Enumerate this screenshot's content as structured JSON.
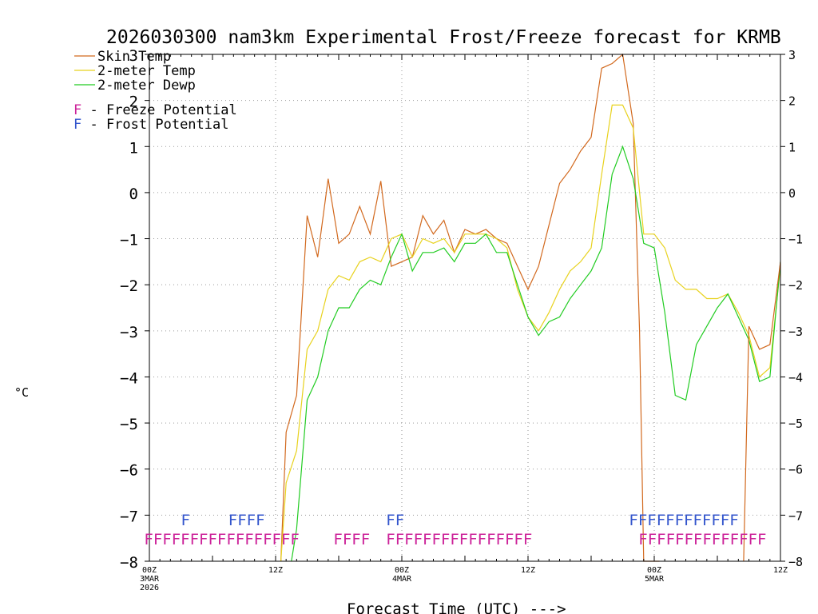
{
  "chart_data": {
    "type": "line",
    "title": "2026030300 nam3km Experimental Frost/Freeze forecast for KRMB",
    "xlabel": "Forecast Time (UTC) --->",
    "ylabel": "°C",
    "ylim": [
      -8,
      3
    ],
    "xlim": [
      0,
      60
    ],
    "yticks": [
      -8,
      -7,
      -6,
      -5,
      -4,
      -3,
      -2,
      -1,
      0,
      1,
      2,
      3
    ],
    "ytick_labels": [
      "−8",
      "−7",
      "−6",
      "−5",
      "−4",
      "−3",
      "−2",
      "−1",
      "0",
      "1",
      "2",
      "3"
    ],
    "xticks": [
      {
        "hour": 0,
        "lines": [
          "00Z",
          "3MAR",
          "2026"
        ]
      },
      {
        "hour": 12,
        "lines": [
          "12Z"
        ]
      },
      {
        "hour": 24,
        "lines": [
          "00Z",
          "4MAR"
        ]
      },
      {
        "hour": 36,
        "lines": [
          "12Z"
        ]
      },
      {
        "hour": 48,
        "lines": [
          "00Z",
          "5MAR"
        ]
      },
      {
        "hour": 60,
        "lines": [
          "12Z"
        ]
      }
    ],
    "legend_position": "top-left",
    "series": [
      {
        "name": "Skin Temp",
        "color": "#d2691e",
        "x": [
          12.5,
          13,
          14,
          15,
          16,
          17,
          18,
          19,
          20,
          21,
          22,
          23,
          24,
          25,
          26,
          27,
          28,
          29,
          30,
          31,
          32,
          33,
          34,
          35,
          36,
          37,
          38,
          39,
          40,
          41,
          42,
          43,
          44,
          45,
          46,
          46.6,
          47,
          48.5
        ],
        "values": [
          -8.0,
          -5.2,
          -4.4,
          -0.5,
          -1.4,
          0.3,
          -1.1,
          -0.9,
          -0.3,
          -0.9,
          0.25,
          -1.6,
          -1.5,
          -1.4,
          -0.5,
          -0.9,
          -0.6,
          -1.3,
          -0.8,
          -0.9,
          -0.8,
          -1.0,
          -1.1,
          -1.6,
          -2.1,
          -1.6,
          -0.7,
          0.2,
          0.5,
          0.9,
          1.2,
          2.7,
          2.8,
          3.0,
          1.5,
          -3.0,
          -8.0,
          -8.0
        ]
      },
      {
        "name": "2-meter Temp",
        "color": "#e8d21e",
        "x": [
          12.5,
          13,
          14,
          15,
          16,
          17,
          18,
          19,
          20,
          21,
          22,
          23,
          24,
          25,
          26,
          27,
          28,
          29,
          30,
          31,
          32,
          33,
          34,
          35,
          36,
          37,
          38,
          39,
          40,
          41,
          42,
          43,
          44,
          45,
          46,
          47,
          48,
          49,
          50,
          51,
          52,
          53,
          54,
          55,
          56,
          57,
          58,
          59,
          60
        ],
        "values": [
          -8.0,
          -6.3,
          -5.6,
          -3.4,
          -3.0,
          -2.1,
          -1.8,
          -1.9,
          -1.5,
          -1.4,
          -1.5,
          -1.0,
          -0.9,
          -1.4,
          -1.0,
          -1.1,
          -1.0,
          -1.3,
          -0.9,
          -0.9,
          -0.9,
          -1.0,
          -1.2,
          -2.1,
          -2.7,
          -3.0,
          -2.6,
          -2.1,
          -1.7,
          -1.5,
          -1.2,
          0.4,
          1.9,
          1.9,
          1.4,
          -0.9,
          -0.9,
          -1.2,
          -1.9,
          -2.1,
          -2.1,
          -2.3,
          -2.3,
          -2.2,
          -2.6,
          -3.1,
          -4.0,
          -3.8,
          -1.6
        ]
      },
      {
        "name": "2-meter Dewp",
        "color": "#22cc22",
        "x": [
          13.5,
          14,
          15,
          16,
          17,
          18,
          19,
          20,
          21,
          22,
          23,
          24,
          25,
          26,
          27,
          28,
          29,
          30,
          31,
          32,
          33,
          34,
          35,
          36,
          37,
          38,
          39,
          40,
          41,
          42,
          43,
          44,
          45,
          46,
          47,
          48,
          49,
          50,
          51,
          52,
          53,
          54,
          55,
          56,
          57,
          58,
          59,
          60
        ],
        "values": [
          -8.0,
          -7.3,
          -4.5,
          -4.0,
          -3.0,
          -2.5,
          -2.5,
          -2.1,
          -1.9,
          -2.0,
          -1.4,
          -0.9,
          -1.7,
          -1.3,
          -1.3,
          -1.2,
          -1.5,
          -1.1,
          -1.1,
          -0.9,
          -1.3,
          -1.3,
          -2.0,
          -2.7,
          -3.1,
          -2.8,
          -2.7,
          -2.3,
          -2.0,
          -1.7,
          -1.2,
          0.4,
          1.0,
          0.3,
          -1.1,
          -1.2,
          -2.6,
          -4.4,
          -4.5,
          -3.3,
          -2.9,
          -2.5,
          -2.2,
          -2.7,
          -3.2,
          -4.1,
          -4.0,
          -1.5
        ]
      },
      {
        "name": "Skin Temp (late)",
        "color": "#d2691e",
        "x": [
          56.5,
          57,
          58,
          59,
          60
        ],
        "values": [
          -8.0,
          -2.9,
          -3.4,
          -3.3,
          -1.5
        ]
      }
    ],
    "legend": [
      {
        "label": "Skin Temp",
        "color": "#d2691e"
      },
      {
        "label": "2-meter Temp",
        "color": "#e8d21e"
      },
      {
        "label": "2-meter Dewp",
        "color": "#22cc22"
      }
    ],
    "flag_legend": [
      {
        "letter": "F",
        "label": " - Freeze Potential",
        "color": "#cc2299"
      },
      {
        "letter": "F",
        "label": " - Frost Potential",
        "color": "#3355cc"
      }
    ],
    "flags": [
      {
        "type": "frost",
        "color": "#3355cc",
        "text": "F",
        "hour": 3.0
      },
      {
        "type": "frost",
        "color": "#3355cc",
        "text": "FFFF",
        "hour": 7.5
      },
      {
        "type": "frost",
        "color": "#3355cc",
        "text": "FF",
        "hour": 22.5
      },
      {
        "type": "frost",
        "color": "#3355cc",
        "text": "FFFFFFFFFFFF",
        "hour": 45.6
      },
      {
        "type": "freeze",
        "color": "#cc2299",
        "text": "FFFFFFFFFFFFFFFFF",
        "hour": -0.5
      },
      {
        "type": "freeze",
        "color": "#cc2299",
        "text": "FFFF",
        "hour": 17.5
      },
      {
        "type": "freeze",
        "color": "#cc2299",
        "text": "FFFFFFFFFFFFFFFF",
        "hour": 22.5
      },
      {
        "type": "freeze",
        "color": "#cc2299",
        "text": "FFFFFFFFFFFFFF",
        "hour": 46.5
      }
    ]
  }
}
